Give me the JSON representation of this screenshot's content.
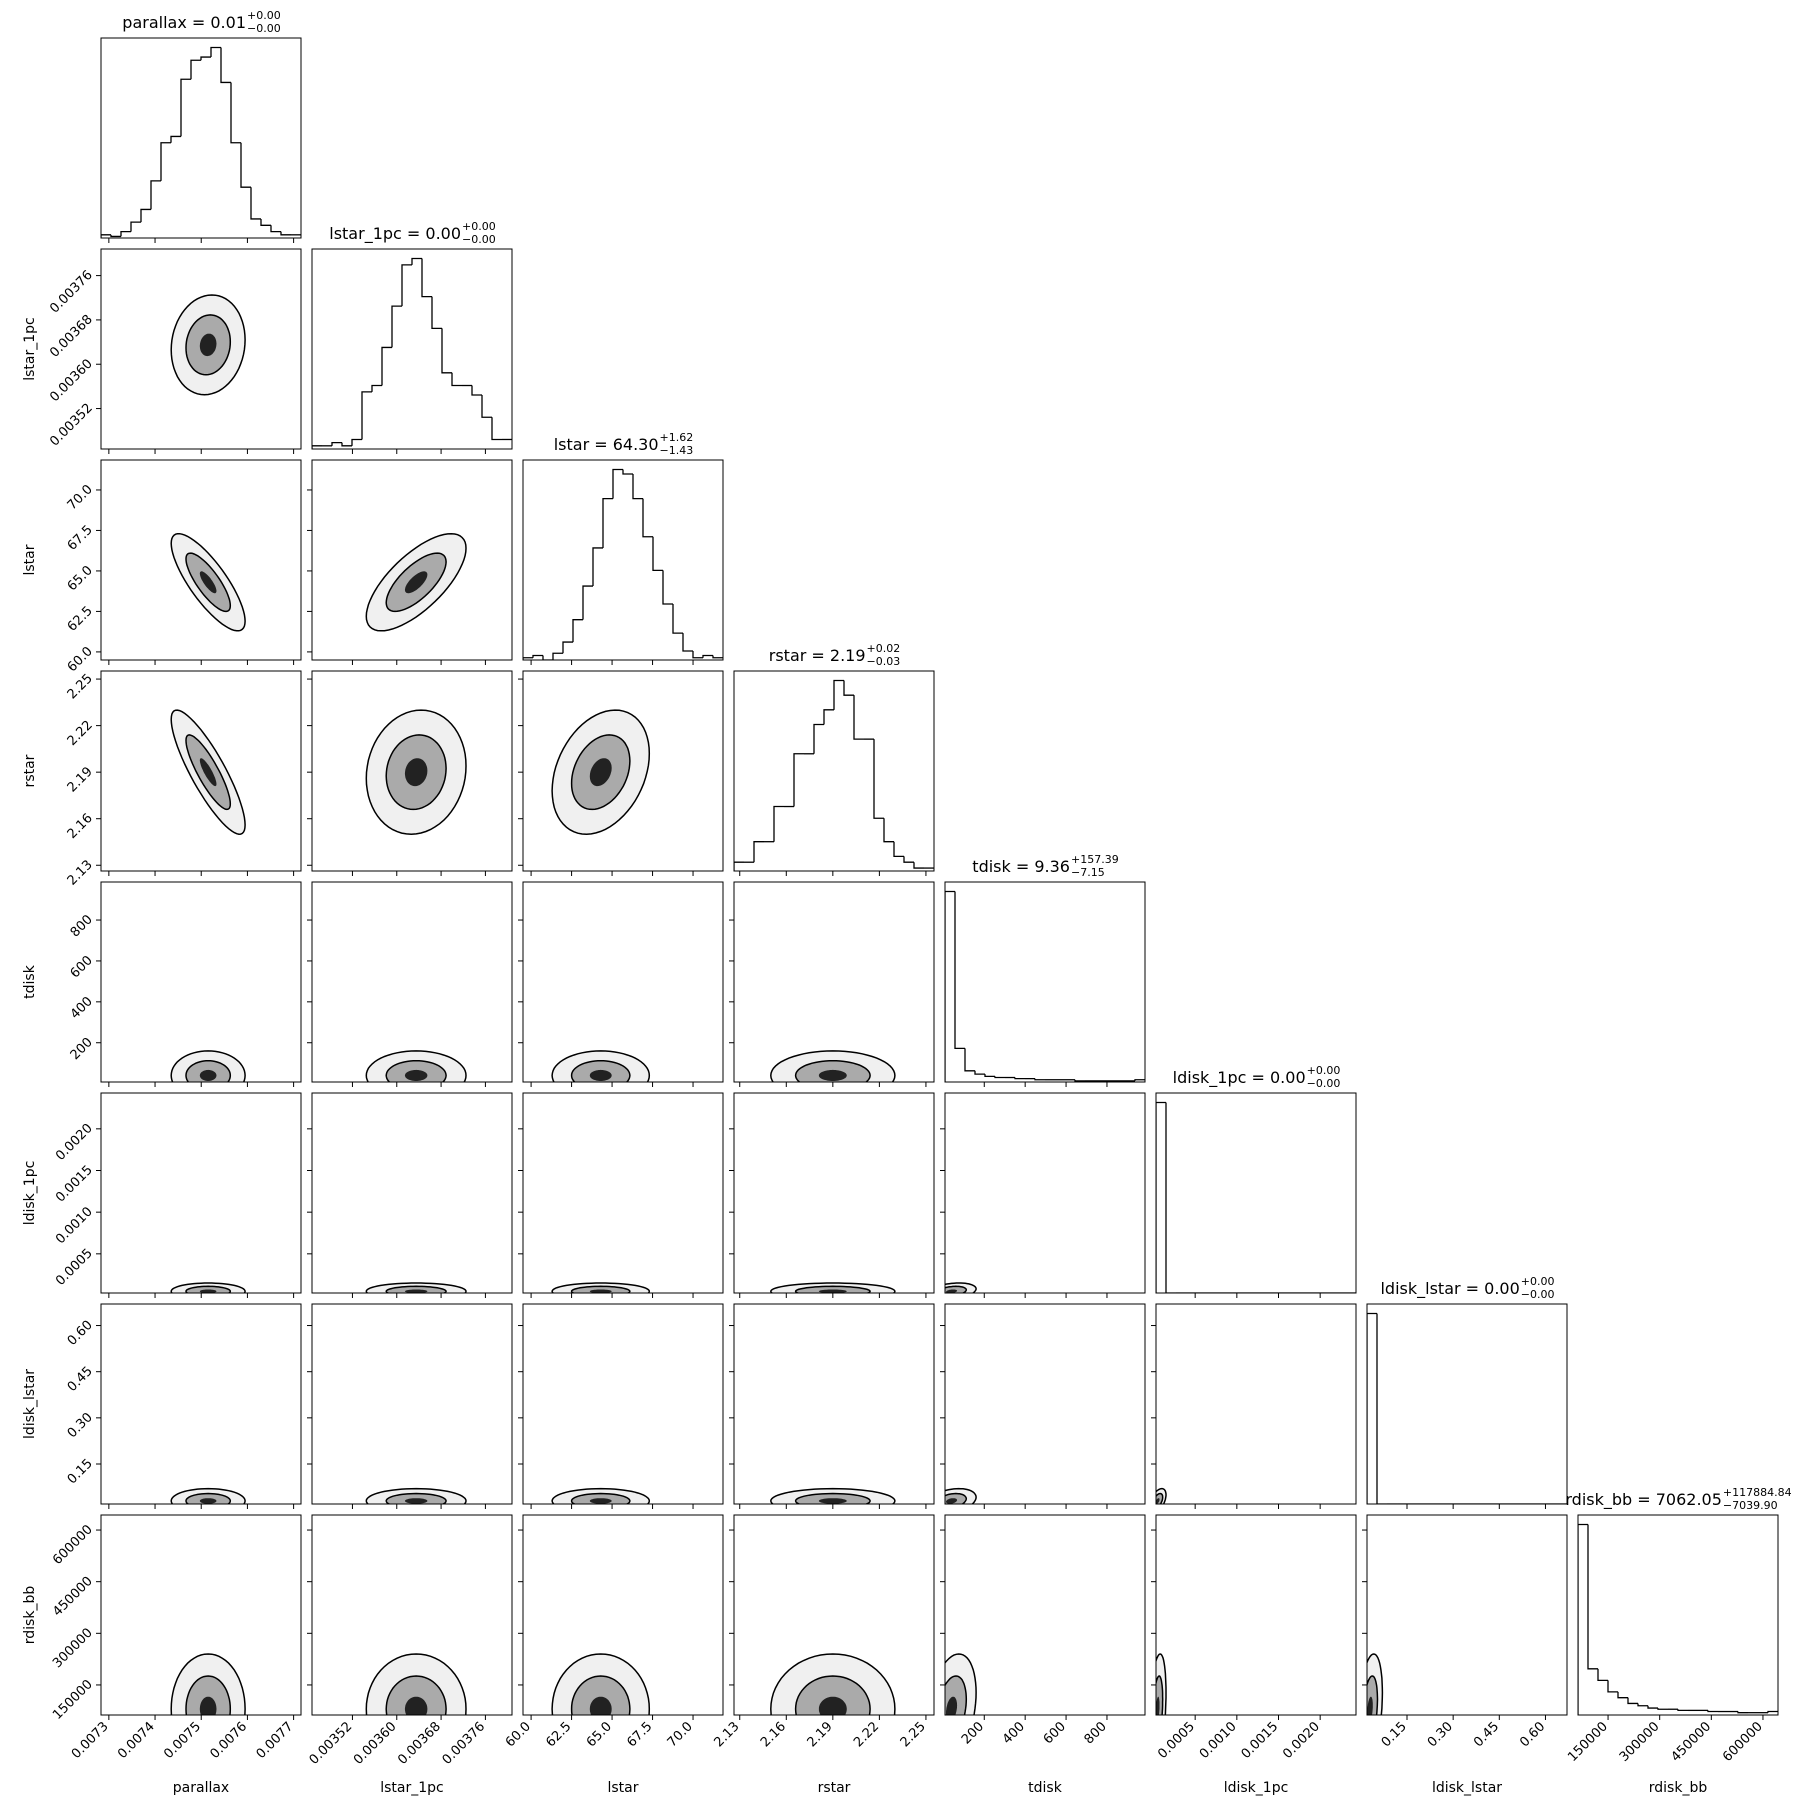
{
  "chart_data": {
    "type": "corner",
    "parameters": [
      {
        "name": "parallax",
        "title": "parallax = 0.01",
        "upper": "+0.00",
        "lower": "−0.00",
        "lim": [
          0.007283,
          0.007716
        ],
        "ticks": [
          0.0073,
          0.0074,
          0.0075,
          0.0076,
          0.0077
        ],
        "hist": [
          1,
          0.5,
          2,
          5,
          9,
          18,
          30,
          32,
          50,
          56,
          57,
          60,
          49,
          30,
          16,
          6,
          4,
          2,
          1,
          1
        ],
        "center": 0.007515,
        "spread": 4e-05
      },
      {
        "name": "lstar_1pc",
        "title": "lstar_1pc = 0.00",
        "upper": "+0.00",
        "lower": "−0.00",
        "lim": [
          0.003447,
          0.003808
        ],
        "ticks": [
          0.00352,
          {
            "value": 0.0036,
            "label": "0.00360"
          },
          0.00368,
          0.00376
        ],
        "hist": [
          1,
          1,
          2,
          1,
          3,
          18,
          20,
          32,
          45,
          58,
          60,
          48,
          38,
          24,
          20,
          20,
          17,
          10,
          3,
          3
        ],
        "center": 0.003635,
        "spread": 4.5e-05
      },
      {
        "name": "lstar",
        "title": "lstar = 64.30",
        "upper": "+1.62",
        "lower": "−1.43",
        "lim": [
          59.5,
          71.85
        ],
        "ticks": [
          {
            "value": 60,
            "label": "60.0"
          },
          62.5,
          {
            "value": 65,
            "label": "65.0"
          },
          67.5,
          {
            "value": 70,
            "label": "70.0"
          }
        ],
        "hist": [
          1,
          2,
          0,
          3,
          8,
          18,
          33,
          50,
          72,
          85,
          83,
          72,
          55,
          40,
          25,
          12,
          4,
          1,
          2,
          1
        ],
        "center": 64.3,
        "spread": 1.5
      },
      {
        "name": "rstar",
        "title": "rstar = 2.19",
        "upper": "+0.02",
        "lower": "−0.03",
        "lim": [
          2.1263,
          2.2552
        ],
        "ticks": [
          2.13,
          2.16,
          2.19,
          2.22,
          2.25
        ],
        "hist": [
          3,
          3,
          10,
          10,
          22,
          22,
          40,
          40,
          50,
          55,
          65,
          60,
          45,
          45,
          18,
          10,
          5,
          3,
          1,
          1
        ],
        "center": 2.19,
        "spread": 0.02
      },
      {
        "name": "tdisk",
        "title": "tdisk = 9.36",
        "upper": "+157.39",
        "lower": "−7.15",
        "lim": [
          8,
          986
        ],
        "ticks": [
          200,
          400,
          600,
          800
        ],
        "hist": [
          170,
          30,
          10,
          7,
          5,
          4,
          4,
          3,
          3,
          2,
          2,
          2,
          2,
          1,
          1,
          1,
          1,
          1,
          1,
          2
        ],
        "center": 40,
        "spread": 60
      },
      {
        "name": "ldisk_1pc",
        "title": "ldisk_1pc = 0.00",
        "upper": "+0.00",
        "lower": "−0.00",
        "lim": [
          3e-05,
          0.00243
        ],
        "ticks": [
          0.0005,
          {
            "value": 0.001,
            "label": "0.0010"
          },
          0.0015,
          {
            "value": 0.002,
            "label": "0.0020"
          }
        ],
        "hist": [
          195,
          0,
          0,
          0,
          0,
          0,
          0,
          0,
          0,
          0,
          0,
          0,
          0,
          0,
          0,
          0,
          0,
          0,
          0,
          0
        ],
        "center": 5e-05,
        "spread": 5e-05
      },
      {
        "name": "ldisk_lstar",
        "title": "ldisk_lstar = 0.00",
        "upper": "+0.00",
        "lower": "−0.00",
        "lim": [
          0.02,
          0.67
        ],
        "ticks": [
          0.15,
          {
            "value": 0.3,
            "label": "0.30"
          },
          0.45,
          {
            "value": 0.6,
            "label": "0.60"
          }
        ],
        "hist": [
          170,
          0,
          0,
          0,
          0,
          0,
          0,
          0,
          0,
          0,
          0,
          0,
          0,
          0,
          0,
          0,
          0,
          0,
          0,
          0
        ],
        "center": 0.03,
        "spread": 0.02
      },
      {
        "name": "rdisk_bb",
        "title": "rdisk_bb = 7062.05",
        "upper": "+117884.84",
        "lower": "−7039.90",
        "lim": [
          62700,
          643700
        ],
        "ticks": [
          150000,
          300000,
          450000,
          600000
        ],
        "hist": [
          165,
          40,
          30,
          20,
          15,
          10,
          8,
          6,
          5,
          5,
          4,
          4,
          4,
          3,
          3,
          3,
          2,
          2,
          2,
          3
        ],
        "center": 80000,
        "spread": 80000
      }
    ],
    "correlation": [
      [],
      [
        0.1
      ],
      [
        -0.8,
        0.7
      ],
      [
        -0.85,
        0.1,
        0.3
      ],
      [
        0,
        0,
        0,
        0
      ],
      [
        0,
        0,
        0,
        0,
        0.3
      ],
      [
        0,
        0,
        0,
        0,
        0.3,
        0.5
      ],
      [
        0,
        0,
        0,
        0,
        0.3,
        0.3,
        0.3
      ]
    ]
  }
}
